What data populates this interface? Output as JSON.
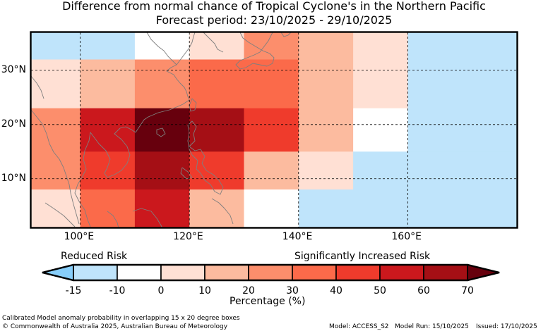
{
  "title": {
    "line1": "Difference from normal chance of Tropical Cyclone's in the Northern Pacific",
    "line2": "Forecast period: 23/10/2025 - 29/10/2025"
  },
  "axes": {
    "lat_labels": [
      "30°N",
      "20°N",
      "10°N"
    ],
    "lat_values": [
      30,
      20,
      10
    ],
    "lon_labels": [
      "100°E",
      "120°E",
      "140°E",
      "160°E"
    ],
    "lon_values": [
      100,
      120,
      140,
      160
    ],
    "lon_range": [
      91,
      180
    ],
    "lat_range": [
      1,
      37
    ]
  },
  "grid": {
    "lon_edges": [
      91,
      100,
      110,
      120,
      130,
      140,
      150,
      160,
      180
    ],
    "lat_edges": [
      37,
      32,
      23,
      15,
      8,
      1
    ],
    "values": [
      [
        -12,
        -12,
        -7,
        5,
        25,
        15,
        0,
        -12
      ],
      [
        5,
        15,
        25,
        35,
        35,
        15,
        0,
        -12
      ],
      [
        25,
        50,
        70,
        60,
        45,
        15,
        -7,
        -12
      ],
      [
        25,
        45,
        60,
        45,
        15,
        0,
        -12,
        -12
      ],
      [
        5,
        35,
        50,
        15,
        -7,
        -12,
        -12,
        -12
      ]
    ]
  },
  "legend": {
    "left_text": "Reduced Risk",
    "right_text": "Significantly Increased Risk",
    "ticks": [
      "-15",
      "-10",
      "0",
      "10",
      "20",
      "30",
      "40",
      "50",
      "60",
      "70"
    ],
    "title": "Percentage (%)",
    "colors": {
      "under": "#87cefa",
      "bins": [
        "#bfe4fb",
        "#ffffff",
        "#ffe0d4",
        "#fcbb9f",
        "#fc8e6c",
        "#fb6a4a",
        "#ef3b2c",
        "#cb181d",
        "#a50f15"
      ],
      "over": "#67000d"
    }
  },
  "colors": {
    "ocean_default": "#87cefa",
    "coastline": "#7f7f7f",
    "frame": "#000000"
  },
  "footer": {
    "line1": "Calibrated Model anomaly probability in overlapping 15 x 20 degree boxes",
    "line2": "© Commonwealth of Australia 2025, Australian Bureau of Meteorology",
    "model": "Model: ACCESS_S2",
    "run": "Model Run: 15/10/2025",
    "issued": "Issued: 17/10/2025"
  }
}
